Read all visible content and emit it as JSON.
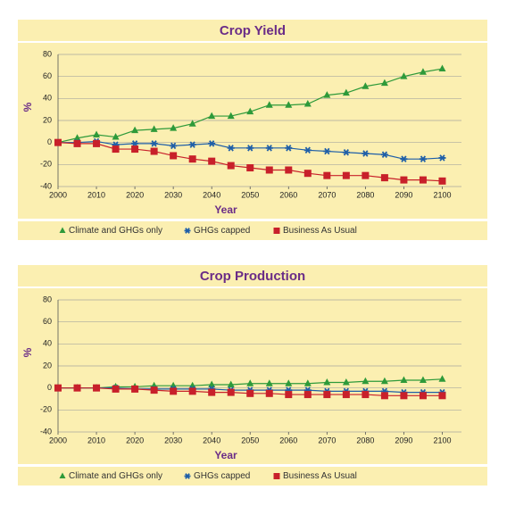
{
  "chart_data": [
    {
      "type": "line",
      "title": "Crop Yield",
      "x_label": "Year",
      "y_label": "%",
      "x": [
        2000,
        2005,
        2010,
        2015,
        2020,
        2025,
        2030,
        2035,
        2040,
        2045,
        2050,
        2055,
        2060,
        2065,
        2070,
        2075,
        2080,
        2085,
        2090,
        2095,
        2100
      ],
      "xlim": [
        2000,
        2105
      ],
      "xticks": [
        2000,
        2010,
        2020,
        2030,
        2040,
        2050,
        2060,
        2070,
        2080,
        2090,
        2100
      ],
      "ylim": [
        -40,
        80
      ],
      "yticks": [
        -40,
        -20,
        0,
        20,
        40,
        60,
        80
      ],
      "grid": true,
      "series": [
        {
          "name": "Climate and GHGs only",
          "color": "#2e9a3a",
          "marker": "triangle",
          "values": [
            0,
            4,
            7,
            5,
            11,
            12,
            13,
            17,
            24,
            24,
            28,
            34,
            34,
            35,
            43,
            45,
            51,
            54,
            60,
            64,
            67
          ]
        },
        {
          "name": "GHGs capped",
          "color": "#1f5fa8",
          "marker": "asterisk",
          "values": [
            0,
            0,
            1,
            -2,
            -1,
            -1,
            -3,
            -2,
            -1,
            -5,
            -5,
            -5,
            -5,
            -7,
            -8,
            -9,
            -10,
            -11,
            -15,
            -15,
            -14
          ]
        },
        {
          "name": "Business As Usual",
          "color": "#c8202a",
          "marker": "square",
          "values": [
            0,
            -1,
            -1,
            -6,
            -6,
            -8,
            -12,
            -15,
            -17,
            -21,
            -23,
            -25,
            -25,
            -28,
            -30,
            -30,
            -30,
            -32,
            -34,
            -34,
            -35
          ]
        }
      ]
    },
    {
      "type": "line",
      "title": "Crop Production",
      "x_label": "Year",
      "y_label": "%",
      "x": [
        2000,
        2005,
        2010,
        2015,
        2020,
        2025,
        2030,
        2035,
        2040,
        2045,
        2050,
        2055,
        2060,
        2065,
        2070,
        2075,
        2080,
        2085,
        2090,
        2095,
        2100
      ],
      "xlim": [
        2000,
        2105
      ],
      "xticks": [
        2000,
        2010,
        2020,
        2030,
        2040,
        2050,
        2060,
        2070,
        2080,
        2090,
        2100
      ],
      "ylim": [
        -40,
        80
      ],
      "yticks": [
        -40,
        -20,
        0,
        20,
        40,
        60,
        80
      ],
      "grid": true,
      "series": [
        {
          "name": "Climate and GHGs only",
          "color": "#2e9a3a",
          "marker": "triangle",
          "values": [
            0,
            0,
            0,
            1,
            1,
            2,
            2,
            2,
            3,
            3,
            4,
            4,
            4,
            4,
            5,
            5,
            6,
            6,
            7,
            7,
            8
          ]
        },
        {
          "name": "GHGs capped",
          "color": "#1f5fa8",
          "marker": "asterisk",
          "values": [
            0,
            0,
            0,
            0,
            -1,
            -1,
            -1,
            -1,
            -1,
            -2,
            -2,
            -2,
            -2,
            -2,
            -3,
            -3,
            -3,
            -3,
            -4,
            -4,
            -4
          ]
        },
        {
          "name": "Business As Usual",
          "color": "#c8202a",
          "marker": "square",
          "values": [
            0,
            0,
            0,
            -1,
            -1,
            -2,
            -3,
            -3,
            -4,
            -4,
            -5,
            -5,
            -6,
            -6,
            -6,
            -6,
            -6,
            -7,
            -7,
            -7,
            -7
          ]
        }
      ]
    }
  ]
}
